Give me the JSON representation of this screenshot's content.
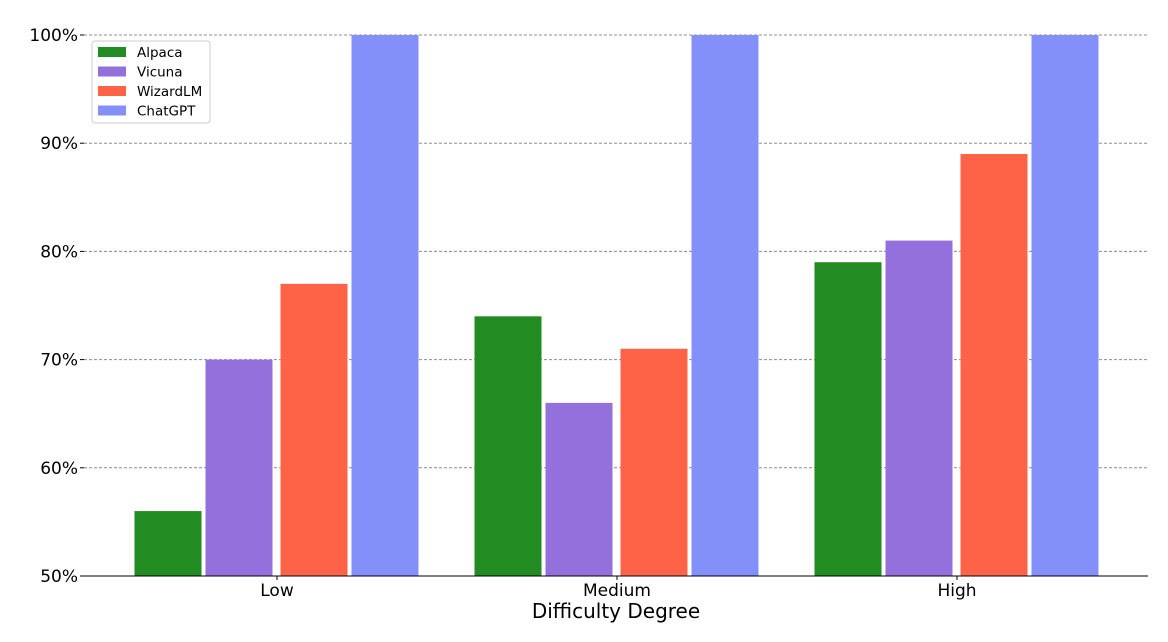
{
  "chart_data": {
    "type": "bar",
    "title": "",
    "xlabel": "Difficulty Degree",
    "ylabel": "",
    "categories": [
      "Low",
      "Medium",
      "High"
    ],
    "series": [
      {
        "name": "Alpaca",
        "color": "#228B22",
        "values": [
          56,
          74,
          79
        ]
      },
      {
        "name": "Vicuna",
        "color": "#9370DB",
        "values": [
          70,
          66,
          81
        ]
      },
      {
        "name": "WizardLM",
        "color": "#FF6347",
        "values": [
          77,
          71,
          89
        ]
      },
      {
        "name": "ChatGPT",
        "color": "#8490FA",
        "values": [
          100,
          100,
          100
        ]
      }
    ],
    "ylim": [
      50,
      100
    ],
    "yticks": [
      50,
      60,
      70,
      80,
      90,
      100
    ],
    "ytick_labels": [
      "50%",
      "60%",
      "70%",
      "80%",
      "90%",
      "100%"
    ],
    "grid": true,
    "legend_position": "top-left"
  }
}
